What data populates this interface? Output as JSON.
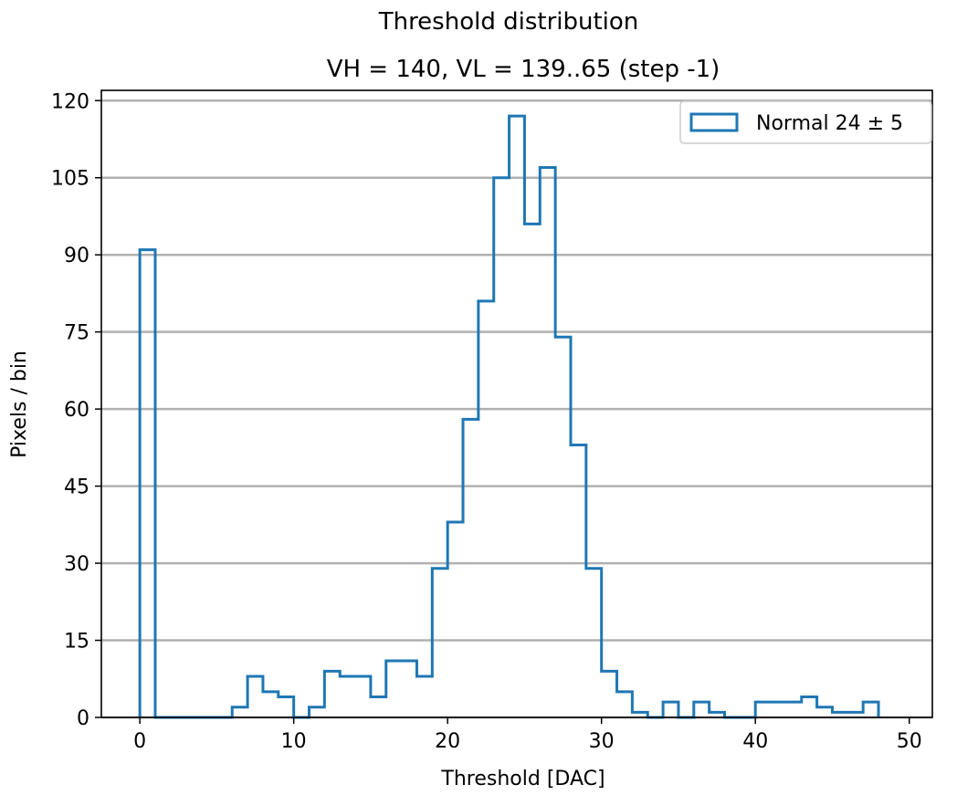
{
  "chart_data": {
    "type": "histogram",
    "title": "Threshold distribution",
    "subtitle": "VH = 140, VL = 139..65 (step -1)",
    "xlabel": "Threshold [DAC]",
    "ylabel": "Pixels / bin",
    "xlim": [
      -2.5,
      51.5
    ],
    "ylim": [
      0,
      122
    ],
    "xticks": [
      0,
      10,
      20,
      30,
      40,
      50
    ],
    "yticks": [
      0,
      15,
      30,
      45,
      60,
      75,
      90,
      105,
      120
    ],
    "grid": "horizontal",
    "legend_position": "top-right",
    "colors": {
      "series": "#1f77b4",
      "grid": "#b0b0b0"
    },
    "series": [
      {
        "name": "Normal 24 ± 5",
        "bin_edges": [
          0,
          1,
          2,
          3,
          4,
          5,
          6,
          7,
          8,
          9,
          10,
          11,
          12,
          13,
          14,
          15,
          16,
          17,
          18,
          19,
          20,
          21,
          22,
          23,
          24,
          25,
          26,
          27,
          28,
          29,
          30,
          31,
          32,
          33,
          34,
          35,
          36,
          37,
          38,
          39,
          40,
          41,
          42,
          43,
          44,
          45,
          46,
          47,
          48
        ],
        "counts": [
          91,
          0,
          0,
          0,
          0,
          0,
          2,
          8,
          5,
          4,
          0,
          2,
          9,
          8,
          8,
          4,
          11,
          11,
          8,
          29,
          38,
          58,
          81,
          105,
          117,
          96,
          107,
          74,
          53,
          29,
          9,
          5,
          1,
          0,
          3,
          0,
          3,
          1,
          0,
          0,
          3,
          3,
          3,
          4,
          2,
          1,
          1,
          3
        ]
      }
    ]
  }
}
